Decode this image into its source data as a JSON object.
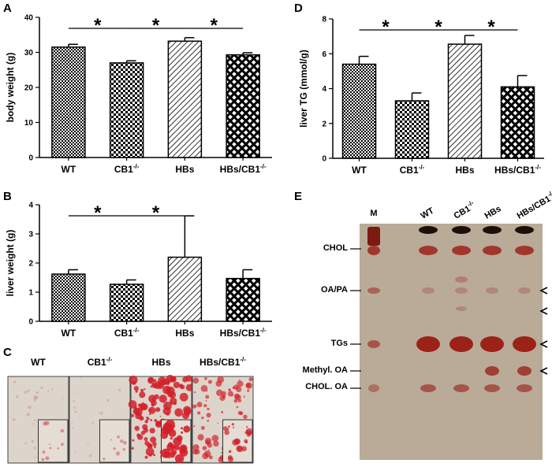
{
  "panels": {
    "A": "A",
    "B": "B",
    "C": "C",
    "D": "D",
    "E": "E"
  },
  "colors": {
    "tlc_bg": "#b9ab98",
    "stain": "#9a1a12",
    "dark": "#1a1008"
  },
  "chart_data": [
    {
      "id": "A",
      "type": "bar",
      "categories": [
        "WT",
        "CB1-/-",
        "HBs",
        "HBs/CB1-/-"
      ],
      "category_parts": [
        [
          "WT",
          ""
        ],
        [
          "CB1",
          "-/-"
        ],
        [
          "HBs",
          ""
        ],
        [
          "HBs/CB1",
          "-/-"
        ]
      ],
      "values": [
        31.5,
        27.0,
        33.2,
        29.3
      ],
      "errors": [
        0.8,
        0.6,
        1.0,
        0.6
      ],
      "patterns": [
        "dense-check",
        "check",
        "diagonal",
        "crosshatch"
      ],
      "ylabel": "body weight (g)",
      "ylim": [
        0,
        40
      ],
      "yticks": [
        "0",
        "10",
        "20",
        "30",
        "40"
      ],
      "significance": [
        {
          "from": 0,
          "to": 1,
          "label": "*"
        },
        {
          "from": 1,
          "to": 2,
          "label": "*"
        },
        {
          "from": 2,
          "to": 3,
          "label": "*"
        }
      ],
      "grid": false
    },
    {
      "id": "B",
      "type": "bar",
      "categories": [
        "WT",
        "CB1-/-",
        "HBs",
        "HBs/CB1-/-"
      ],
      "category_parts": [
        [
          "WT",
          ""
        ],
        [
          "CB1",
          "-/-"
        ],
        [
          "HBs",
          ""
        ],
        [
          "HBs/CB1",
          "-/-"
        ]
      ],
      "values": [
        1.62,
        1.27,
        2.2,
        1.47
      ],
      "errors": [
        0.15,
        0.15,
        1.42,
        0.3
      ],
      "patterns": [
        "dense-check",
        "check",
        "diagonal",
        "crosshatch"
      ],
      "ylabel": "liver weight (g)",
      "ylim": [
        0,
        4
      ],
      "yticks": [
        "0",
        "1",
        "2",
        "3",
        "4"
      ],
      "significance": [
        {
          "from": 0,
          "to": 1,
          "label": "*"
        },
        {
          "from": 1,
          "to": 2,
          "label": "*"
        }
      ],
      "grid": false
    },
    {
      "id": "D",
      "type": "bar",
      "categories": [
        "WT",
        "CB1-/-",
        "HBs",
        "HBs/CB1-/-"
      ],
      "category_parts": [
        [
          "WT",
          ""
        ],
        [
          "CB1",
          "-/-"
        ],
        [
          "HBs",
          ""
        ],
        [
          "HBs/CB1",
          "-/-"
        ]
      ],
      "values": [
        5.4,
        3.3,
        6.55,
        4.1
      ],
      "errors": [
        0.45,
        0.45,
        0.5,
        0.65
      ],
      "patterns": [
        "dense-check",
        "check",
        "diagonal",
        "crosshatch"
      ],
      "ylabel": "liver TG (mmol/g)",
      "ylim": [
        0,
        8
      ],
      "yticks": [
        "0",
        "2",
        "4",
        "6",
        "8"
      ],
      "significance": [
        {
          "from": 0,
          "to": 1,
          "label": "*"
        },
        {
          "from": 1,
          "to": 2,
          "label": "*"
        },
        {
          "from": 2,
          "to": 3,
          "label": "*"
        }
      ],
      "grid": false
    }
  ],
  "histology": {
    "labels": [
      [
        "WT",
        ""
      ],
      [
        "CB1",
        "-/-"
      ],
      [
        "HBs",
        ""
      ],
      [
        "HBs/CB1",
        "-/-"
      ]
    ],
    "redness": [
      0.12,
      0.05,
      0.9,
      0.6
    ]
  },
  "tlc": {
    "lanes": [
      "M",
      "WT",
      "CB1-/-",
      "HBs",
      "HBs/CB1-/-"
    ],
    "lane_parts": [
      [
        "M",
        ""
      ],
      [
        "WT",
        ""
      ],
      [
        "CB1",
        "-/-"
      ],
      [
        "HBs",
        ""
      ],
      [
        "HBs/CB1",
        "-/-"
      ]
    ],
    "bands": [
      "CHOL",
      "OA/PA",
      "TGs",
      "Methyl. OA",
      "CHOL. OA"
    ]
  }
}
